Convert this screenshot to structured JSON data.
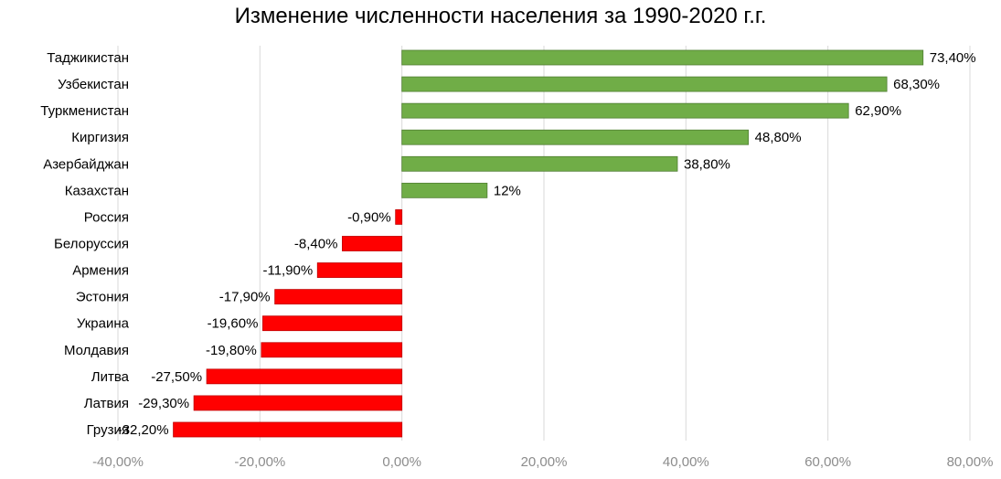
{
  "chart_data": {
    "type": "bar",
    "orientation": "horizontal",
    "title": "Изменение численности населения за 1990-2020 г.г.",
    "categories": [
      "Таджикистан",
      "Узбекистан",
      "Туркменистан",
      "Киргизия",
      "Азербайджан",
      "Казахстан",
      "Россия",
      "Белоруссия",
      "Армения",
      "Эстония",
      "Украина",
      "Молдавия",
      "Литва",
      "Латвия",
      "Грузия"
    ],
    "values": [
      73.4,
      68.3,
      62.9,
      48.8,
      38.8,
      12,
      -0.9,
      -8.4,
      -11.9,
      -17.9,
      -19.6,
      -19.8,
      -27.5,
      -29.3,
      -32.2
    ],
    "data_labels": [
      "73,40%",
      "68,30%",
      "62,90%",
      "48,80%",
      "38,80%",
      "12%",
      "-0,90%",
      "-8,40%",
      "-11,90%",
      "-17,90%",
      "-19,60%",
      "-19,80%",
      "-27,50%",
      "-29,30%",
      "-32,20%"
    ],
    "xlim": [
      -40,
      80
    ],
    "x_ticks": [
      -40,
      -20,
      0,
      20,
      40,
      60,
      80
    ],
    "x_tick_labels": [
      "-40,00%",
      "-20,00%",
      "0,00%",
      "20,00%",
      "40,00%",
      "60,00%",
      "80,00%"
    ],
    "grid": "vertical",
    "colors": {
      "positive": "#70ad47",
      "negative": "#ff0000",
      "positive_border": "#507e32",
      "negative_border": "#c00000",
      "grid": "#d9d9d9"
    }
  }
}
